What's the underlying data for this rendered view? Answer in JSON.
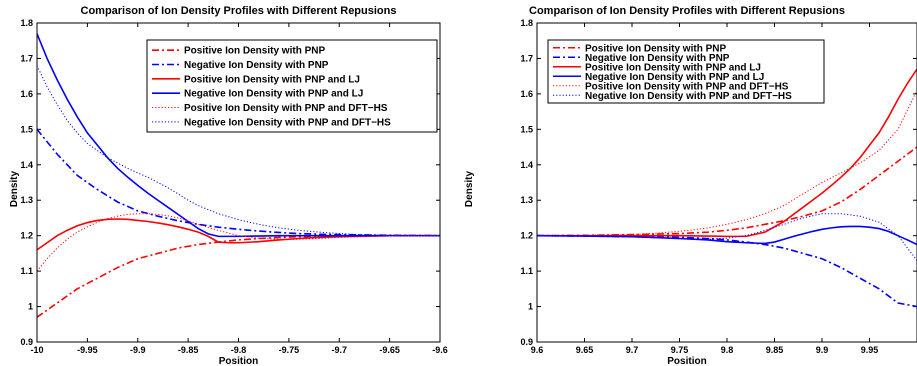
{
  "chart_data": [
    {
      "type": "line",
      "title": "Comparison of Ion Density Profiles with Different Repusions",
      "xlabel": "Position",
      "ylabel": "Density",
      "xlim": [
        -10,
        -9.6
      ],
      "ylim": [
        0.9,
        1.8
      ],
      "xticks": [
        "-10",
        "-9.95",
        "-9.9",
        "-9.85",
        "-9.8",
        "-9.75",
        "-9.7",
        "-9.65",
        "-9.6"
      ],
      "yticks": [
        "0.9",
        "1",
        "1.1",
        "1.2",
        "1.3",
        "1.4",
        "1.5",
        "1.6",
        "1.7",
        "1.8"
      ],
      "grid": false,
      "legend_position": "top-right",
      "series": [
        {
          "name": "Positive Ion Density with PNP",
          "color": "#ff0000",
          "dash": "dashdot",
          "x": [
            -10,
            -9.98,
            -9.96,
            -9.94,
            -9.92,
            -9.9,
            -9.88,
            -9.86,
            -9.84,
            -9.82,
            -9.8,
            -9.78,
            -9.76,
            -9.74,
            -9.72,
            -9.7,
            -9.65,
            -9.6
          ],
          "y": [
            0.97,
            1.01,
            1.05,
            1.08,
            1.11,
            1.135,
            1.15,
            1.165,
            1.175,
            1.182,
            1.188,
            1.192,
            1.195,
            1.197,
            1.198,
            1.199,
            1.2,
            1.2
          ]
        },
        {
          "name": "Negative Ion Density with PNP",
          "color": "#0000ff",
          "dash": "dashdot",
          "x": [
            -10,
            -9.98,
            -9.96,
            -9.94,
            -9.92,
            -9.9,
            -9.88,
            -9.86,
            -9.84,
            -9.82,
            -9.8,
            -9.78,
            -9.76,
            -9.74,
            -9.72,
            -9.7,
            -9.65,
            -9.6
          ],
          "y": [
            1.5,
            1.43,
            1.37,
            1.33,
            1.295,
            1.27,
            1.255,
            1.242,
            1.232,
            1.224,
            1.218,
            1.213,
            1.209,
            1.206,
            1.204,
            1.203,
            1.201,
            1.2
          ]
        },
        {
          "name": "Positive Ion Density with PNP and LJ",
          "color": "#ff0000",
          "dash": "solid",
          "x": [
            -10,
            -9.99,
            -9.98,
            -9.97,
            -9.96,
            -9.95,
            -9.94,
            -9.93,
            -9.92,
            -9.91,
            -9.9,
            -9.89,
            -9.88,
            -9.87,
            -9.86,
            -9.85,
            -9.84,
            -9.83,
            -9.82,
            -9.81,
            -9.8,
            -9.78,
            -9.76,
            -9.74,
            -9.72,
            -9.7,
            -9.65,
            -9.6
          ],
          "y": [
            1.16,
            1.18,
            1.2,
            1.215,
            1.228,
            1.237,
            1.243,
            1.246,
            1.247,
            1.246,
            1.243,
            1.24,
            1.236,
            1.231,
            1.225,
            1.218,
            1.21,
            1.198,
            1.182,
            1.18,
            1.18,
            1.183,
            1.188,
            1.192,
            1.195,
            1.197,
            1.2,
            1.2
          ]
        },
        {
          "name": "Negative Ion Density with PNP and LJ",
          "color": "#0000ff",
          "dash": "solid",
          "x": [
            -10,
            -9.99,
            -9.98,
            -9.97,
            -9.96,
            -9.95,
            -9.94,
            -9.93,
            -9.92,
            -9.91,
            -9.9,
            -9.89,
            -9.88,
            -9.87,
            -9.86,
            -9.85,
            -9.84,
            -9.83,
            -9.82,
            -9.8,
            -9.78,
            -9.76,
            -9.74,
            -9.72,
            -9.7,
            -9.65,
            -9.6
          ],
          "y": [
            1.77,
            1.7,
            1.64,
            1.585,
            1.535,
            1.49,
            1.455,
            1.42,
            1.39,
            1.365,
            1.342,
            1.32,
            1.3,
            1.28,
            1.26,
            1.24,
            1.22,
            1.205,
            1.198,
            1.198,
            1.199,
            1.2,
            1.2,
            1.2,
            1.2,
            1.2,
            1.2
          ]
        },
        {
          "name": "Positive Ion Density with PNP and DFT−HS",
          "color": "#ff0000",
          "dash": "dotted",
          "x": [
            -10,
            -9.99,
            -9.98,
            -9.97,
            -9.96,
            -9.95,
            -9.94,
            -9.93,
            -9.92,
            -9.91,
            -9.9,
            -9.89,
            -9.88,
            -9.87,
            -9.86,
            -9.85,
            -9.84,
            -9.82,
            -9.8,
            -9.78,
            -9.76,
            -9.74,
            -9.72,
            -9.7,
            -9.68,
            -9.65,
            -9.6
          ],
          "y": [
            1.1,
            1.135,
            1.165,
            1.19,
            1.21,
            1.225,
            1.238,
            1.248,
            1.255,
            1.26,
            1.262,
            1.262,
            1.26,
            1.256,
            1.25,
            1.242,
            1.232,
            1.215,
            1.2,
            1.193,
            1.19,
            1.19,
            1.192,
            1.195,
            1.197,
            1.199,
            1.2
          ]
        },
        {
          "name": "Negative Ion Density with PNP and DFT−HS",
          "color": "#0000ff",
          "dash": "dotted",
          "x": [
            -10,
            -9.99,
            -9.98,
            -9.97,
            -9.96,
            -9.95,
            -9.94,
            -9.93,
            -9.92,
            -9.91,
            -9.9,
            -9.89,
            -9.88,
            -9.87,
            -9.86,
            -9.85,
            -9.84,
            -9.82,
            -9.8,
            -9.78,
            -9.76,
            -9.74,
            -9.72,
            -9.7,
            -9.68,
            -9.65,
            -9.6
          ],
          "y": [
            1.68,
            1.62,
            1.57,
            1.525,
            1.49,
            1.46,
            1.44,
            1.42,
            1.405,
            1.39,
            1.377,
            1.365,
            1.35,
            1.335,
            1.318,
            1.3,
            1.285,
            1.262,
            1.245,
            1.232,
            1.222,
            1.215,
            1.21,
            1.206,
            1.203,
            1.201,
            1.2
          ]
        }
      ]
    },
    {
      "type": "line",
      "title": "Comparison of Ion Density Profiles with Different Repusions",
      "xlabel": "Position",
      "ylabel": "Density",
      "xlim": [
        9.6,
        10
      ],
      "ylim": [
        0.9,
        1.8
      ],
      "xticks": [
        "9.6",
        "9.65",
        "9.7",
        "9.75",
        "9.8",
        "9.85",
        "9.9",
        "9.95",
        ""
      ],
      "yticks": [
        "0.9",
        "1",
        "1.1",
        "1.2",
        "1.3",
        "1.4",
        "1.5",
        "1.6",
        "1.7",
        "1.8"
      ],
      "grid": false,
      "legend_position": "top-left",
      "series": [
        {
          "name": "Positive Ion Density with PNP",
          "color": "#ff0000",
          "dash": "dashdot",
          "x": [
            9.6,
            9.65,
            9.7,
            9.75,
            9.78,
            9.8,
            9.82,
            9.84,
            9.86,
            9.88,
            9.9,
            9.92,
            9.94,
            9.96,
            9.98,
            10
          ],
          "y": [
            1.2,
            1.201,
            1.203,
            1.206,
            1.21,
            1.215,
            1.222,
            1.232,
            1.242,
            1.255,
            1.27,
            1.295,
            1.33,
            1.37,
            1.41,
            1.45
          ]
        },
        {
          "name": "Negative Ion Density with PNP",
          "color": "#0000ff",
          "dash": "dashdot",
          "x": [
            9.6,
            9.65,
            9.7,
            9.75,
            9.78,
            9.8,
            9.82,
            9.84,
            9.86,
            9.88,
            9.9,
            9.92,
            9.94,
            9.96,
            9.98,
            10
          ],
          "y": [
            1.2,
            1.199,
            1.197,
            1.195,
            1.192,
            1.188,
            1.182,
            1.175,
            1.165,
            1.15,
            1.135,
            1.11,
            1.08,
            1.05,
            1.01,
            1.0
          ]
        },
        {
          "name": "Positive Ion Density with PNP and LJ",
          "color": "#ff0000",
          "dash": "solid",
          "x": [
            9.6,
            9.65,
            9.7,
            9.75,
            9.78,
            9.8,
            9.82,
            9.84,
            9.85,
            9.86,
            9.87,
            9.88,
            9.89,
            9.9,
            9.91,
            9.92,
            9.93,
            9.94,
            9.95,
            9.96,
            9.97,
            9.98,
            9.99,
            10
          ],
          "y": [
            1.2,
            1.2,
            1.2,
            1.2,
            1.199,
            1.198,
            1.198,
            1.21,
            1.225,
            1.24,
            1.26,
            1.28,
            1.3,
            1.32,
            1.342,
            1.365,
            1.39,
            1.42,
            1.455,
            1.49,
            1.535,
            1.585,
            1.63,
            1.67
          ]
        },
        {
          "name": "Negative Ion Density with PNP and LJ",
          "color": "#0000ff",
          "dash": "solid",
          "x": [
            9.6,
            9.65,
            9.7,
            9.75,
            9.78,
            9.8,
            9.82,
            9.84,
            9.85,
            9.86,
            9.87,
            9.88,
            9.89,
            9.9,
            9.91,
            9.92,
            9.93,
            9.94,
            9.95,
            9.96,
            9.97,
            9.98,
            9.99,
            10
          ],
          "y": [
            1.2,
            1.199,
            1.197,
            1.192,
            1.188,
            1.183,
            1.18,
            1.178,
            1.182,
            1.19,
            1.198,
            1.205,
            1.212,
            1.218,
            1.222,
            1.225,
            1.226,
            1.226,
            1.224,
            1.22,
            1.212,
            1.2,
            1.188,
            1.175
          ]
        },
        {
          "name": "Positive Ion Density with PNP and DFT−HS",
          "color": "#ff0000",
          "dash": "dotted",
          "x": [
            9.6,
            9.65,
            9.7,
            9.72,
            9.74,
            9.76,
            9.78,
            9.8,
            9.82,
            9.84,
            9.86,
            9.88,
            9.9,
            9.92,
            9.94,
            9.96,
            9.98,
            10
          ],
          "y": [
            1.2,
            1.201,
            1.203,
            1.206,
            1.21,
            1.215,
            1.222,
            1.232,
            1.245,
            1.262,
            1.285,
            1.318,
            1.35,
            1.377,
            1.405,
            1.44,
            1.5,
            1.61
          ]
        },
        {
          "name": "Negative Ion Density with PNP and DFT−HS",
          "color": "#0000ff",
          "dash": "dotted",
          "x": [
            9.6,
            9.65,
            9.7,
            9.72,
            9.74,
            9.76,
            9.78,
            9.8,
            9.82,
            9.84,
            9.86,
            9.88,
            9.9,
            9.92,
            9.94,
            9.96,
            9.98,
            10
          ],
          "y": [
            1.2,
            1.199,
            1.197,
            1.195,
            1.192,
            1.19,
            1.19,
            1.193,
            1.2,
            1.215,
            1.232,
            1.25,
            1.262,
            1.262,
            1.255,
            1.238,
            1.2,
            1.13
          ]
        }
      ]
    }
  ]
}
